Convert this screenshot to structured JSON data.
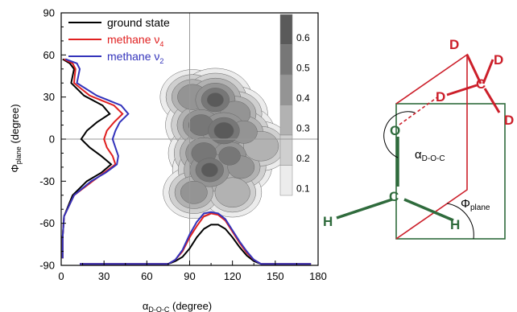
{
  "chart_data": {
    "type": "line",
    "xlabel": {
      "base": "α",
      "sub": "D-O-C",
      "rest": " (degree)"
    },
    "ylabel": {
      "base": "Φ",
      "sub": "plane",
      "rest": " (degree)"
    },
    "xlim": [
      0,
      180
    ],
    "ylim": [
      -90,
      90
    ],
    "xticks": [
      0,
      30,
      60,
      90,
      120,
      150,
      180
    ],
    "yticks": [
      -90,
      -60,
      -30,
      0,
      30,
      60,
      90
    ],
    "grid": false,
    "reference_lines": {
      "x": 90,
      "y": 0
    },
    "legend": {
      "placement": "top-left",
      "entries": [
        {
          "base": "ground state",
          "sub": "",
          "color": "#000000"
        },
        {
          "base": "methane ν",
          "sub": "4",
          "color": "#e02020"
        },
        {
          "base": "methane ν",
          "sub": "2",
          "color": "#3333bb"
        }
      ]
    },
    "phi_distribution": {
      "description_axis": "curves plotted along the y-axis at left edge",
      "y": [
        57,
        54,
        50,
        40,
        31,
        24,
        18,
        12,
        6,
        0,
        -6,
        -12,
        -18,
        -24,
        -30,
        -40,
        -55,
        -70,
        -85
      ],
      "series": [
        {
          "name": "ground state",
          "color": "#000000",
          "x": [
            1,
            6,
            9,
            7,
            16,
            29,
            34,
            25,
            18,
            14,
            20,
            28,
            35,
            28,
            18,
            8,
            2,
            1,
            1
          ]
        },
        {
          "name": "methane ν4",
          "color": "#e02020",
          "x": [
            2,
            8,
            10,
            9,
            20,
            37,
            43,
            37,
            32,
            30,
            32,
            36,
            38,
            30,
            22,
            9,
            2,
            1,
            1
          ]
        },
        {
          "name": "methane ν2",
          "color": "#3333bb",
          "x": [
            3,
            11,
            13,
            11,
            25,
            42,
            47,
            41,
            38,
            36,
            38,
            40,
            39,
            31,
            21,
            9,
            2,
            1,
            1
          ]
        }
      ]
    },
    "alpha_distribution": {
      "x": [
        13,
        75,
        80,
        85,
        90,
        95,
        100,
        105,
        110,
        115,
        120,
        125,
        130,
        135,
        140,
        148,
        175
      ],
      "series": [
        {
          "name": "ground state",
          "color": "#000000",
          "y": [
            -89,
            -89,
            -87,
            -84,
            -78,
            -70,
            -64,
            -61,
            -61,
            -64,
            -70,
            -77,
            -83,
            -87,
            -89,
            -89,
            -89
          ]
        },
        {
          "name": "methane ν4",
          "color": "#e02020",
          "y": [
            -89,
            -89,
            -86,
            -80,
            -70,
            -62,
            -55,
            -53,
            -54,
            -58,
            -66,
            -74,
            -81,
            -86,
            -89,
            -89,
            -89
          ]
        },
        {
          "name": "methane ν2",
          "color": "#3333bb",
          "y": [
            -89,
            -89,
            -86,
            -79,
            -68,
            -59,
            -53,
            -52,
            -53,
            -57,
            -65,
            -73,
            -80,
            -86,
            -89,
            -89,
            -89
          ]
        }
      ]
    },
    "contour_map": {
      "type": "heatmap",
      "colorbar": {
        "ticks": [
          "0.6",
          "0.5",
          "0.4",
          "0.3",
          "0.2",
          "0.1"
        ],
        "levels": [
          0.65,
          0.55,
          0.45,
          0.35,
          0.25,
          0.15
        ],
        "colors": [
          "#5a5a5a",
          "#777777",
          "#949494",
          "#b2b2b2",
          "#cfcfcf",
          "#ececec"
        ]
      },
      "peaks": [
        {
          "alpha": 92,
          "phi": 30,
          "value": 0.45
        },
        {
          "alpha": 108,
          "phi": 28,
          "value": 0.6
        },
        {
          "alpha": 122,
          "phi": 18,
          "value": 0.45
        },
        {
          "alpha": 98,
          "phi": 10,
          "value": 0.55
        },
        {
          "alpha": 114,
          "phi": 6,
          "value": 0.65
        },
        {
          "alpha": 128,
          "phi": 5,
          "value": 0.4
        },
        {
          "alpha": 100,
          "phi": -10,
          "value": 0.55
        },
        {
          "alpha": 118,
          "phi": -12,
          "value": 0.5
        },
        {
          "alpha": 104,
          "phi": -22,
          "value": 0.6
        },
        {
          "alpha": 126,
          "phi": -20,
          "value": 0.4
        },
        {
          "alpha": 140,
          "phi": -5,
          "value": 0.35
        },
        {
          "alpha": 93,
          "phi": -38,
          "value": 0.4
        },
        {
          "alpha": 120,
          "phi": -38,
          "value": 0.35
        }
      ]
    }
  },
  "diagram": {
    "labels": {
      "d_top": "D",
      "d_right": "D",
      "d_middle": "D",
      "d_edge": "D",
      "c_top": "C",
      "o": "O",
      "c_bottom": "C",
      "h_left": "H",
      "h_right": "H",
      "alpha_base": "α",
      "alpha_sub": "D-O-C",
      "phi_base": "Φ",
      "phi_sub": "plane"
    },
    "colors": {
      "methane": "#cc1f2a",
      "methanol": "#2f6b3c"
    }
  }
}
